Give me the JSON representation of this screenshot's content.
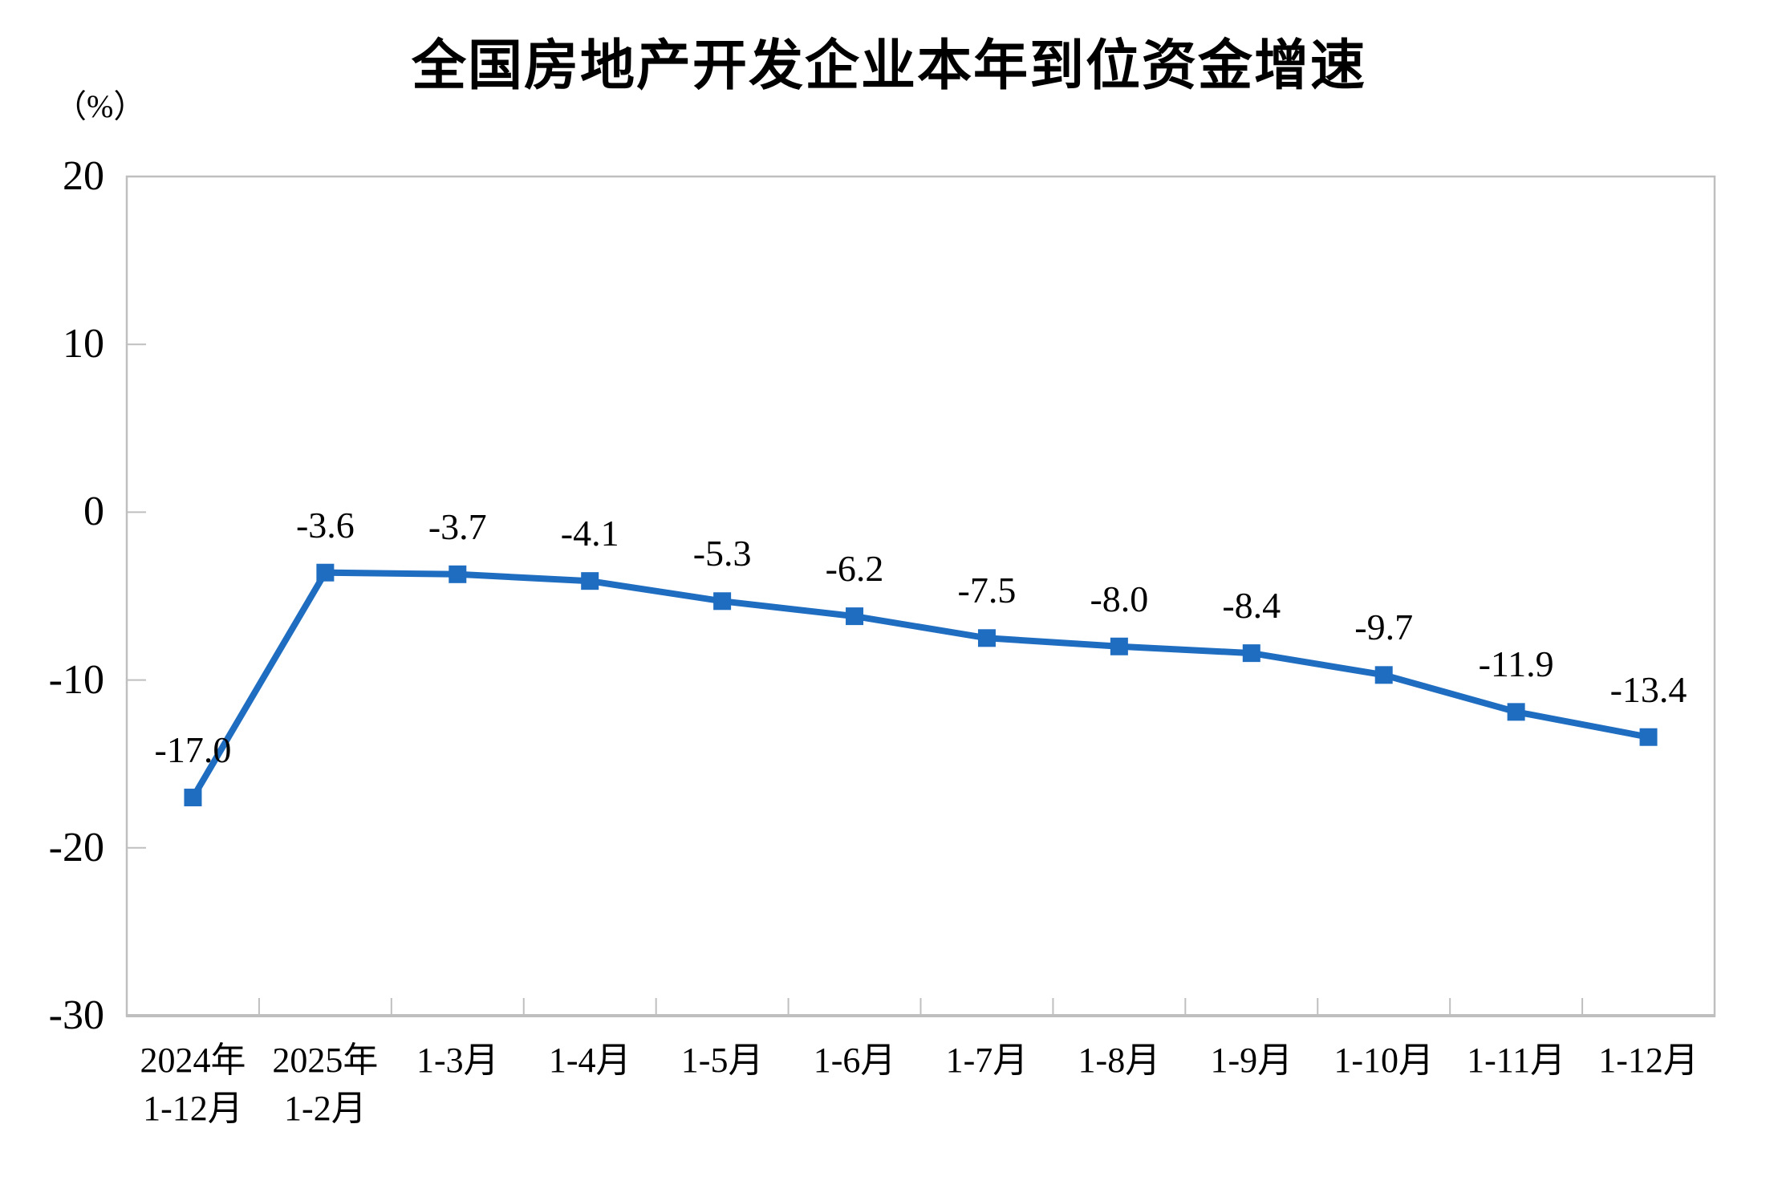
{
  "chart_data": {
    "type": "line",
    "title": "全国房地产开发企业本年到位资金增速",
    "unit_label": "（%）",
    "categories": [
      "2024年\n1-12月",
      "2025年\n1-2月",
      "1-3月",
      "1-4月",
      "1-5月",
      "1-6月",
      "1-7月",
      "1-8月",
      "1-9月",
      "1-10月",
      "1-11月",
      "1-12月"
    ],
    "series": [
      {
        "name": "本年到位资金增速",
        "values": [
          -17.0,
          -3.6,
          -3.7,
          -4.1,
          -5.3,
          -6.2,
          -7.5,
          -8.0,
          -8.4,
          -9.7,
          -11.9,
          -13.4
        ],
        "data_labels": [
          "-17.0",
          "-3.6",
          "-3.7",
          "-4.1",
          "-5.3",
          "-6.2",
          "-7.5",
          "-8.0",
          "-8.4",
          "-9.7",
          "-11.9",
          "-13.4"
        ]
      }
    ],
    "y_axis": {
      "min": -30,
      "max": 20,
      "step": 10,
      "tick_labels": [
        "20",
        "10",
        "0",
        "-10",
        "-20",
        "-30"
      ]
    },
    "x_axis": {
      "tick_style": "between-categories-inside"
    },
    "legend_position": "none",
    "grid": "off",
    "marker": "square",
    "colors": {
      "line": "#1F6DC1",
      "marker": "#1F6DC1",
      "axis": "#BFBFBF",
      "text": "#000000"
    }
  }
}
